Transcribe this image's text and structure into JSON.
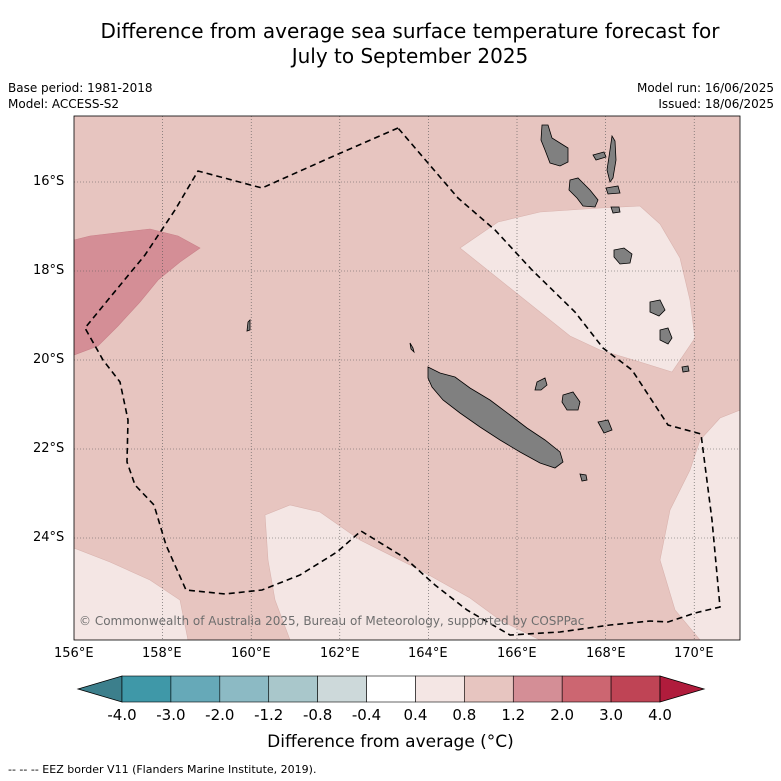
{
  "title_line1": "Difference from average sea surface temperature forecast for",
  "title_line2": "July to September 2025",
  "base_period": "Base period: 1981-2018",
  "model": "Model: ACCESS-S2",
  "model_run": "Model run: 16/06/2025",
  "issued": "Issued: 18/06/2025",
  "lat_ticks": [
    "16°S",
    "18°S",
    "20°S",
    "22°S",
    "24°S"
  ],
  "lon_ticks": [
    "156°E",
    "158°E",
    "160°E",
    "162°E",
    "164°E",
    "166°E",
    "168°E",
    "170°E"
  ],
  "copyright": "© Commonwealth of Australia 2025, Bureau of Meteorology, supported by COSPPac",
  "colorbar": {
    "title": "Difference from average (°C)",
    "labels": [
      "-4.0",
      "-3.0",
      "-2.0",
      "-1.2",
      "-0.8",
      "-0.4",
      "0.4",
      "0.8",
      "1.2",
      "2.0",
      "3.0",
      "4.0"
    ],
    "colors": [
      "#3f98a8",
      "#66a9b8",
      "#8cbac4",
      "#a9c7cb",
      "#cdd9da",
      "#ffffff",
      "#f4e6e4",
      "#e7c5c0",
      "#d48e96",
      "#cc6671",
      "#bf4455"
    ],
    "under_color": "#3c7f8c",
    "over_color": "#b01c3c"
  },
  "legend_footer": "--  --  -- EEZ border V11 (Flanders Marine Institute, 2019)."
}
